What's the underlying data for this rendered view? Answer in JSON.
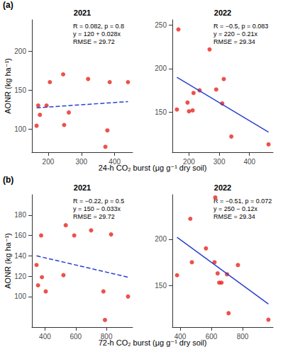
{
  "chart_data": [
    {
      "type": "scatter",
      "label": "(a)",
      "x_label": "24-h CO₂ burst (μg g⁻¹ dry soil)",
      "y_label": "AONR (kg ha⁻¹)",
      "panels": [
        {
          "title": "2021",
          "annotations": [
            "R = 0.082, p = 0.8",
            "y = 120 + 0.028x",
            "RMSE = 29.72"
          ],
          "x": [
            165,
            170,
            175,
            195,
            205,
            245,
            248,
            262,
            320,
            372,
            378,
            385,
            440
          ],
          "values": [
            104,
            130,
            118,
            130,
            160,
            170,
            105,
            121,
            164,
            77,
            98,
            160,
            160
          ],
          "color": "#e8261c",
          "marker": "circle",
          "fit": {
            "x": [
              165,
              440
            ],
            "values": [
              127,
              135
            ],
            "color": "#2a3fd0",
            "line_style": "dashed"
          },
          "xlim": [
            151,
            454
          ],
          "ylim": [
            70,
            240
          ],
          "xticks": [
            200,
            300,
            400
          ],
          "yticks": [
            100,
            150,
            200
          ],
          "grid": false
        },
        {
          "title": "2022",
          "annotations": [
            "R = −0.5, p = 0.083",
            "y = 220 − 0.21x",
            "RMSE = 29.34"
          ],
          "x": [
            160,
            165,
            195,
            200,
            212,
            215,
            235,
            268,
            290,
            310,
            315,
            340,
            463
          ],
          "values": [
            153,
            245,
            161,
            151,
            152,
            172,
            175,
            222,
            176,
            160,
            188,
            122,
            113
          ],
          "color": "#e8261c",
          "marker": "circle",
          "fit": {
            "x": [
              160,
              463
            ],
            "values": [
              190,
              127
            ],
            "color": "#2a3fd0",
            "line_style": "solid"
          },
          "xlim": [
            145,
            478
          ],
          "ylim": [
            104,
            256
          ],
          "xticks": [
            200,
            300,
            400
          ],
          "yticks": [
            150,
            200,
            250
          ],
          "grid": false
        }
      ]
    },
    {
      "type": "scatter",
      "label": "(b)",
      "x_label": "72-h CO₂ burst (μg g⁻¹ dry soil)",
      "y_label": "AONR (kg ha⁻¹)",
      "panels": [
        {
          "title": "2021",
          "annotations": [
            "R = −0.22, p = 0.5",
            "y = 150 − 0.033x",
            "RMSE = 29.72"
          ],
          "x": [
            345,
            355,
            375,
            380,
            405,
            520,
            535,
            590,
            700,
            780,
            790,
            830,
            940
          ],
          "values": [
            131,
            111,
            160,
            119,
            105,
            121,
            170,
            160,
            165,
            105,
            77,
            161,
            100
          ],
          "color": "#e8261c",
          "marker": "circle",
          "fit": {
            "x": [
              345,
              940
            ],
            "values": [
              140,
              119
            ],
            "color": "#2a3fd0",
            "line_style": "dashed"
          },
          "xlim": [
            315,
            970
          ],
          "ylim": [
            70,
            200
          ],
          "xticks": [
            400,
            600,
            800
          ],
          "yticks": [
            100,
            120,
            140,
            160,
            180
          ],
          "grid": false
        },
        {
          "title": "2022",
          "annotations": [
            "R = −0.51, p = 0.072",
            "y = 250 − 0.12x",
            "RMSE = 29.34"
          ],
          "x": [
            380,
            465,
            475,
            565,
            620,
            625,
            640,
            650,
            665,
            700,
            710,
            770,
            965
          ],
          "values": [
            161,
            222,
            175,
            190,
            175,
            245,
            163,
            153,
            153,
            162,
            120,
            172,
            113
          ],
          "color": "#e8261c",
          "marker": "circle",
          "fit": {
            "x": [
              380,
              965
            ],
            "values": [
              202,
              130
            ],
            "color": "#2a3fd0",
            "line_style": "solid"
          },
          "xlim": [
            350,
            995
          ],
          "ylim": [
            105,
            248
          ],
          "xticks": [
            400,
            600,
            800
          ],
          "yticks": [
            150,
            200
          ],
          "grid": false
        }
      ]
    }
  ]
}
